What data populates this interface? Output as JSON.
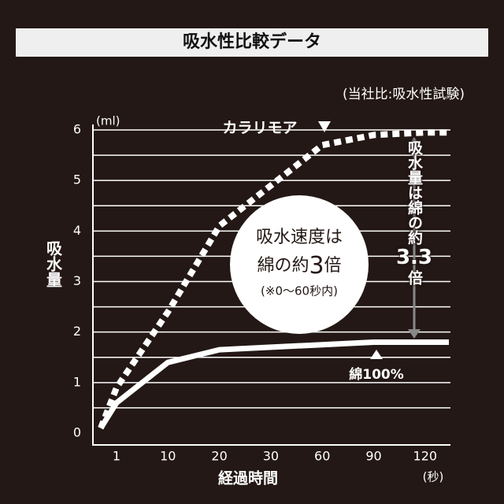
{
  "chart_data": {
    "type": "line",
    "title": "吸水性比較データ",
    "subtitle": "(当社比:吸水性試験)",
    "y_label": "吸水量",
    "y_unit": "(ml)",
    "x_label": "経過時間",
    "x_unit": "(秒)",
    "categories": [
      null,
      "1",
      "10",
      "20",
      "30",
      "60",
      "90",
      "120",
      null
    ],
    "series": [
      {
        "name": "カラリモア",
        "color": "#ffffff",
        "dashed": true,
        "values": [
          0.1,
          0.9,
          2.4,
          4.1,
          4.9,
          5.7,
          5.9,
          5.95,
          5.95
        ]
      },
      {
        "name": "綿100%",
        "color": "#ffffff",
        "dashed": false,
        "values": [
          0.1,
          0.6,
          1.4,
          1.65,
          1.7,
          1.75,
          1.8,
          1.8,
          1.8
        ]
      }
    ],
    "ylim": [
      0,
      6
    ],
    "yticks": [
      0,
      1,
      2,
      3,
      4,
      5,
      6
    ],
    "minor_yticks": [
      0.5,
      1.5,
      2.5,
      3.5,
      4.5,
      5.5
    ],
    "grid": true,
    "circle_note": {
      "line1": "吸水速度は",
      "line2a": "綿の約",
      "line2b": "3",
      "line2c": "倍",
      "line3": "(※0〜60秒内)"
    },
    "ratio_note": {
      "a": "吸水量は綿の約",
      "b": "3.3",
      "c": "倍"
    }
  }
}
